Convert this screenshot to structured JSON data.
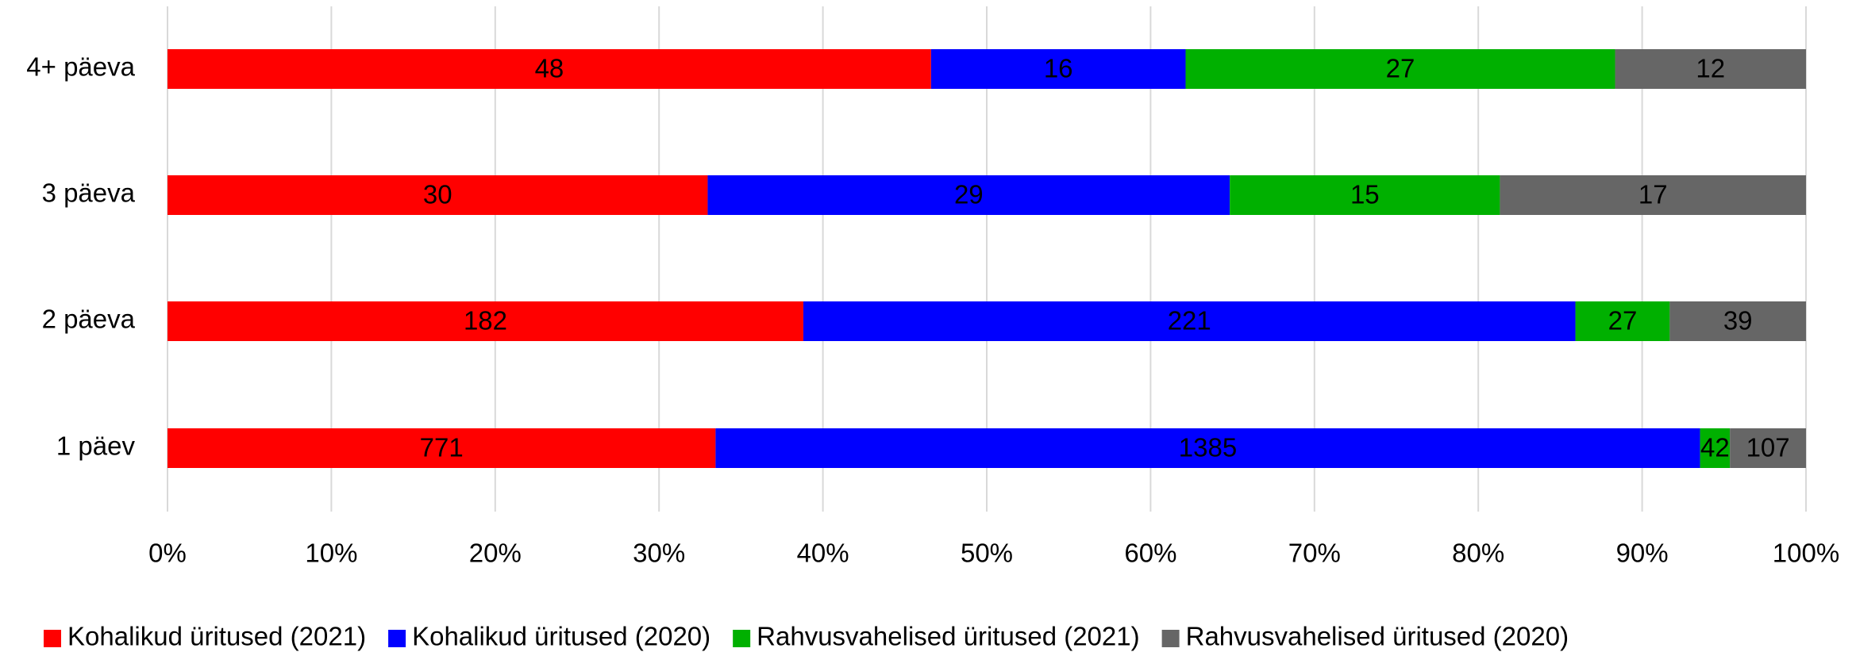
{
  "chart_data": {
    "type": "bar",
    "orientation": "horizontal",
    "stacking": "percent",
    "categories": [
      "4+ päeva",
      "3 päeva",
      "2 päeva",
      "1 päev"
    ],
    "series": [
      {
        "name": "Kohalikud üritused (2021)",
        "color": "#ff0000",
        "values": [
          48,
          30,
          182,
          771
        ]
      },
      {
        "name": "Kohalikud üritused (2020)",
        "color": "#0000ff",
        "values": [
          16,
          29,
          221,
          1385
        ]
      },
      {
        "name": "Rahvusvahelised üritused (2021)",
        "color": "#00b000",
        "values": [
          27,
          15,
          27,
          42
        ]
      },
      {
        "name": "Rahvusvahelised üritused (2020)",
        "color": "#666666",
        "values": [
          12,
          17,
          39,
          107
        ]
      }
    ],
    "xlim": [
      0,
      100
    ],
    "xticks": [
      {
        "value": 0,
        "label": "0%"
      },
      {
        "value": 10,
        "label": "10%"
      },
      {
        "value": 20,
        "label": "20%"
      },
      {
        "value": 30,
        "label": "30%"
      },
      {
        "value": 40,
        "label": "40%"
      },
      {
        "value": 50,
        "label": "50%"
      },
      {
        "value": 60,
        "label": "60%"
      },
      {
        "value": 70,
        "label": "70%"
      },
      {
        "value": 80,
        "label": "80%"
      },
      {
        "value": 90,
        "label": "90%"
      },
      {
        "value": 100,
        "label": "100%"
      }
    ],
    "grid": true,
    "legend": "bottom"
  }
}
